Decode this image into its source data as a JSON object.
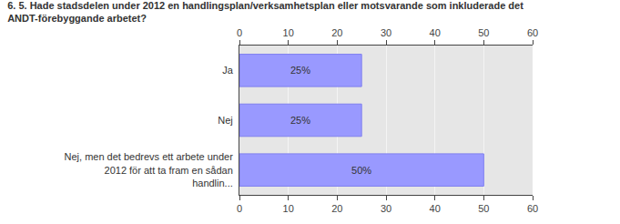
{
  "chart_data": {
    "type": "bar",
    "orientation": "horizontal",
    "title": "6. 5. Hade stadsdelen under 2012 en handlingsplan/verksamhetsplan eller motsvarande som inkluderade det ANDT-förebyggande arbetet?",
    "categories": [
      "Ja",
      "Nej",
      "Nej, men det bedrevs ett arbete under 2012 för att ta fram en sådan handlin..."
    ],
    "values": [
      25,
      25,
      50
    ],
    "value_labels": [
      "25%",
      "25%",
      "50%"
    ],
    "color": "#9999ff",
    "xlim": [
      0,
      60
    ],
    "xticks": [
      0,
      10,
      20,
      30,
      40,
      50,
      60
    ],
    "grid": true,
    "data_labels": true
  }
}
